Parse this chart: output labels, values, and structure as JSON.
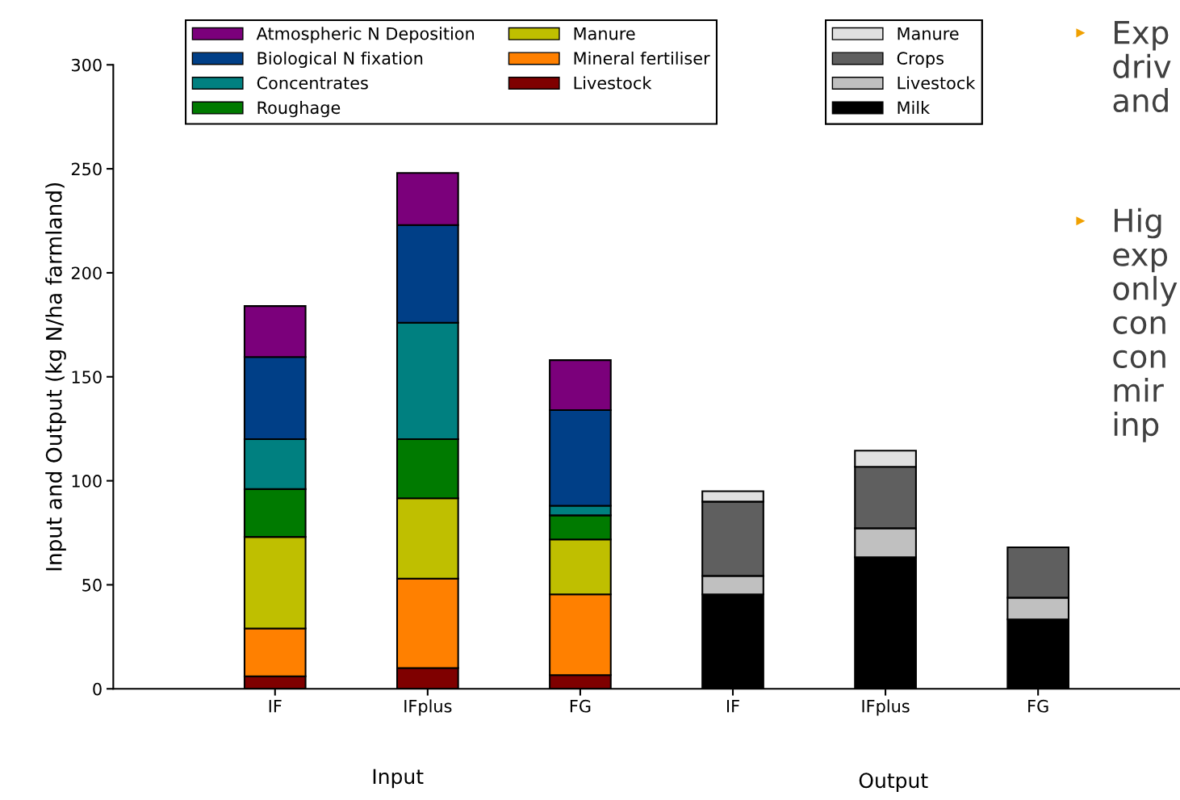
{
  "chart_data": {
    "type": "bar",
    "stacked": true,
    "ylabel": "Input and Output (kg N/ha farmland)",
    "categories": [
      "IF",
      "IFplus",
      "FG",
      "IF",
      "IFplus",
      "FG"
    ],
    "ylim": [
      0,
      300
    ],
    "yticks": [
      0,
      50,
      100,
      150,
      200,
      250,
      300
    ],
    "grid": false,
    "legend": "top",
    "series": [
      {
        "name": "Livestock",
        "color": "#7f0000",
        "values": [
          6,
          10,
          6.6,
          null,
          null,
          null
        ]
      },
      {
        "name": "Mineral fertiliser",
        "color": "#ff8000",
        "values": [
          23,
          43,
          38.8,
          null,
          null,
          null
        ]
      },
      {
        "name": "Manure",
        "color": "#bfbf00",
        "values": [
          44,
          38.6,
          26.4,
          null,
          null,
          null
        ]
      },
      {
        "name": "Roughage",
        "color": "#007a00",
        "values": [
          23,
          28.4,
          11.6,
          null,
          null,
          null
        ]
      },
      {
        "name": "Concentrates",
        "color": "#008080",
        "values": [
          24,
          56,
          4.6,
          null,
          null,
          null
        ]
      },
      {
        "name": "Biological N fixation",
        "color": "#003f87",
        "values": [
          39.5,
          47,
          46,
          null,
          null,
          null
        ]
      },
      {
        "name": "Atmospheric N Deposition",
        "color": "#7b007b",
        "values": [
          24.5,
          25,
          24,
          null,
          null,
          null
        ]
      },
      {
        "name": "Milk",
        "color": "#000000",
        "values": [
          null,
          null,
          null,
          45.4,
          63.2,
          33.4
        ]
      },
      {
        "name": "Livestock",
        "color": "#c0c0c0",
        "values": [
          null,
          null,
          null,
          8.9,
          14,
          10.4
        ]
      },
      {
        "name": "Crops",
        "color": "#5f5f5f",
        "values": [
          null,
          null,
          null,
          35.7,
          29.5,
          24.2
        ]
      },
      {
        "name": "Manure",
        "color": "#e0e0e0",
        "values": [
          null,
          null,
          null,
          5,
          7.8,
          null
        ]
      }
    ],
    "annotations": [
      "Input",
      "Output",
      "▸Exp\ndriv\nand",
      "▸Hig\nexp\nonly\ncon\ncon\nmir\ninp"
    ]
  }
}
